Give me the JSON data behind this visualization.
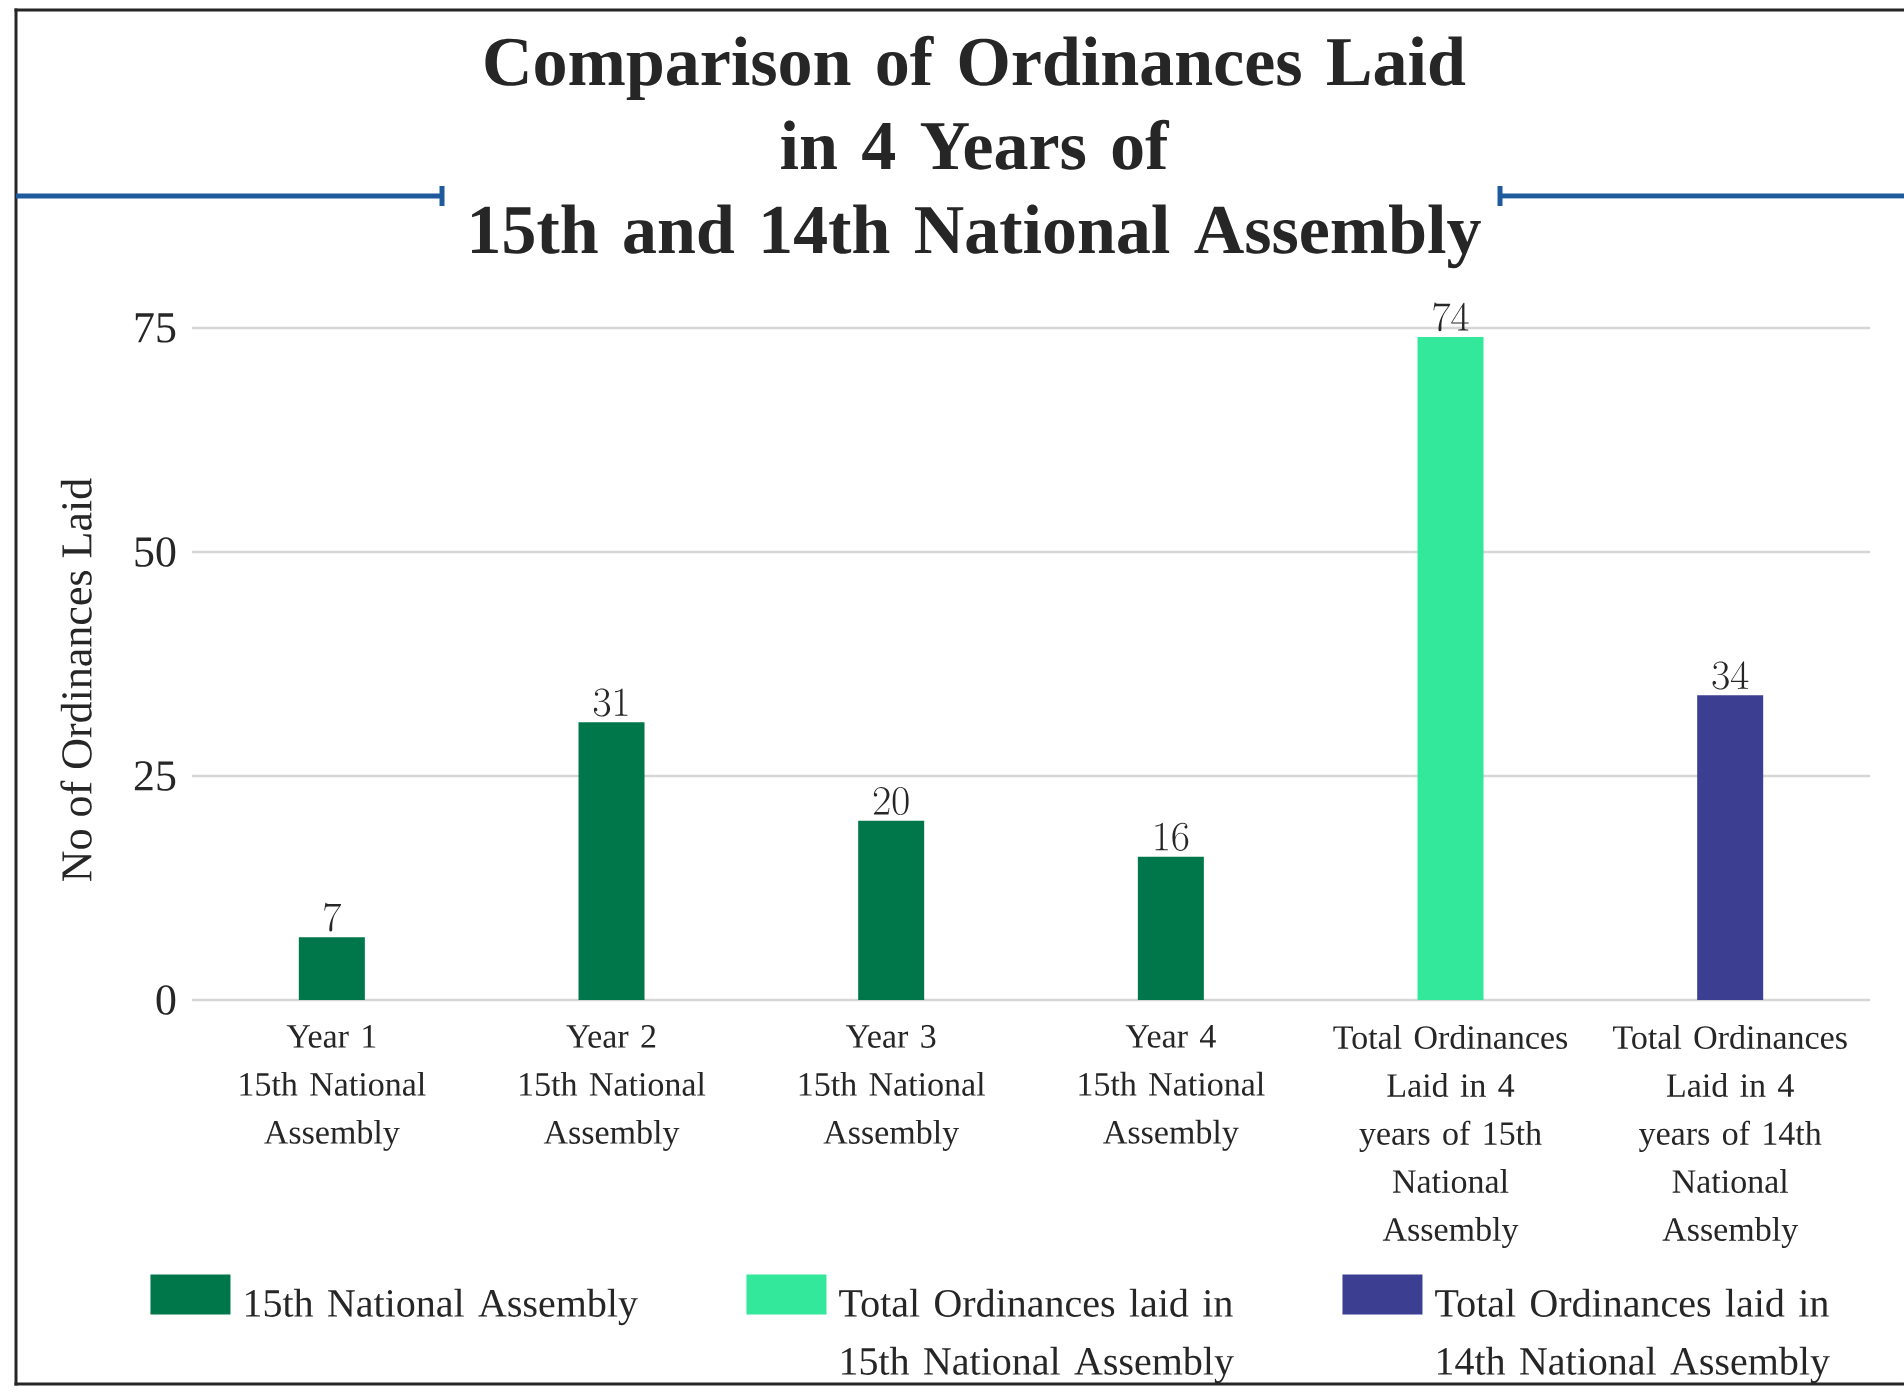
{
  "chart_data": {
    "type": "bar",
    "title": "Comparison of Ordinances Laid\nin 4 Years of\n15th and 14th National Assembly",
    "ylabel": "No of Ordinances Laid",
    "categories": [
      "Year 1\n15th National Assembly",
      "Year 2\n15th National Assembly",
      "Year 3\n15th National Assembly",
      "Year 4\n15th National Assembly",
      "Total Ordinances Laid in 4\nyears of 15th National Assembly",
      "Total Ordinances Laid in 4\nyears of 14th National Assembly"
    ],
    "series": [
      {
        "name": "15th National Assembly",
        "color": "#00774a",
        "values": [
          7,
          31,
          20,
          16,
          null,
          null
        ]
      },
      {
        "name": "Total Ordinances laid in 15th National Assembly",
        "color": "#33e89a",
        "values": [
          null,
          null,
          null,
          null,
          74,
          null
        ]
      },
      {
        "name": "Total Ordinances laid in 14th National Assembly",
        "color": "#3c3f91",
        "values": [
          null,
          null,
          null,
          null,
          null,
          34
        ]
      }
    ],
    "ylim": [
      0,
      75
    ],
    "yticks": [
      0,
      25,
      50,
      75
    ],
    "grid": "y",
    "legend": "bottom",
    "data_labels": true
  }
}
